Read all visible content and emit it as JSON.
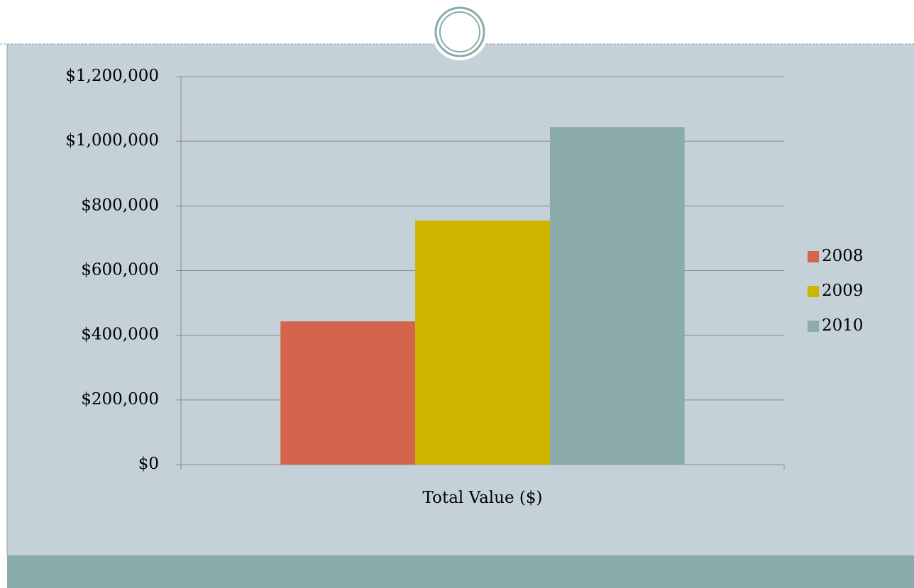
{
  "chart_data": {
    "type": "bar",
    "categories": [
      "Total Value ($)"
    ],
    "series": [
      {
        "name": "2008",
        "color": "#d4644b",
        "values": [
          443000
        ]
      },
      {
        "name": "2009",
        "color": "#cfb500",
        "values": [
          755000
        ]
      },
      {
        "name": "2010",
        "color": "#8cacac",
        "values": [
          1044000
        ]
      }
    ],
    "ylim": [
      0,
      1200000
    ],
    "yticks": [
      {
        "value": 0,
        "label": "$0"
      },
      {
        "value": 200000,
        "label": "$200,000"
      },
      {
        "value": 400000,
        "label": "$400,000"
      },
      {
        "value": 600000,
        "label": "$600,000"
      },
      {
        "value": 800000,
        "label": "$800,000"
      },
      {
        "value": 1000000,
        "label": "$1,000,000"
      },
      {
        "value": 1200000,
        "label": "$1,200,000"
      }
    ],
    "grid": true,
    "legend": "right"
  }
}
